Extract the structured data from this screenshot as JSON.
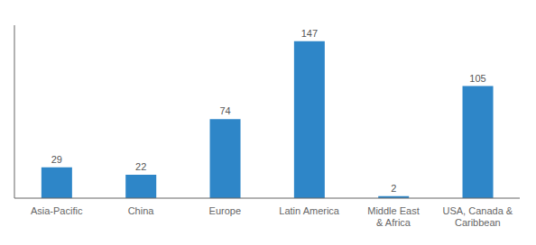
{
  "chart_data": {
    "type": "bar",
    "categories": [
      "Asia-Pacific",
      "China",
      "Europe",
      "Latin America",
      "Middle East\n& Africa",
      "USA, Canada &\nCaribbean"
    ],
    "values": [
      29,
      22,
      74,
      147,
      2,
      105
    ],
    "color": "#2E86C8",
    "ylim": [
      0,
      162
    ],
    "grid": false,
    "data_labels": true,
    "tick_labels": "x"
  }
}
